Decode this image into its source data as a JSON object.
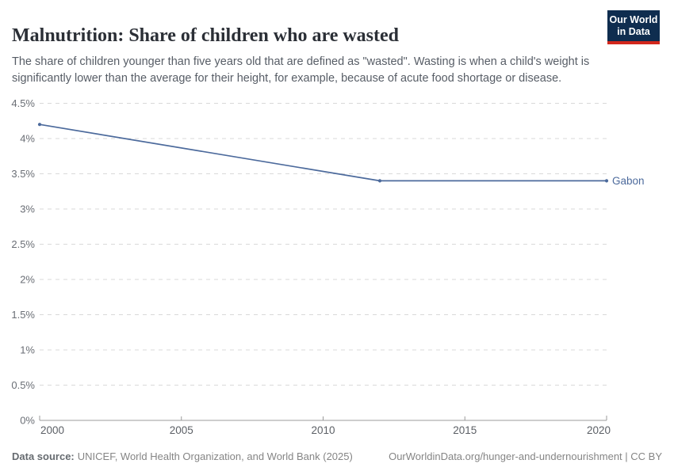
{
  "header": {
    "title": "Malnutrition: Share of children who are wasted",
    "subtitle": "The share of children younger than five years old that are defined as \"wasted\". Wasting is when a child's weight is significantly lower than the average for their height, for example, because of acute food shortage or disease.",
    "logo": {
      "line1": "Our World",
      "line2": "in Data",
      "bg_color": "#0f2d4f",
      "accent_color": "#d2271c"
    }
  },
  "chart_data": {
    "type": "line",
    "title": "Malnutrition: Share of children who are wasted",
    "xlabel": "",
    "ylabel": "",
    "xlim": [
      2000,
      2020
    ],
    "ylim": [
      0,
      4.5
    ],
    "xticks": [
      2000,
      2005,
      2010,
      2015,
      2020
    ],
    "yticks": [
      0,
      0.5,
      1,
      1.5,
      2,
      2.5,
      3,
      3.5,
      4,
      4.5
    ],
    "ytick_suffix": "%",
    "grid": "horizontal-dashed",
    "legend_position": "end-of-line-label",
    "series": [
      {
        "name": "Gabon",
        "color": "#4c6a9c",
        "points": [
          [
            2000,
            4.2
          ],
          [
            2012,
            3.4
          ],
          [
            2020,
            3.4
          ]
        ]
      }
    ],
    "style": {
      "gridline_color": "#d9d9d9",
      "axis_color": "#9b9b9b",
      "ytick_label_color": "#6a6e75",
      "xtick_label_color": "#5c6066"
    }
  },
  "footer": {
    "datasource_label": "Data source:",
    "datasource_value": "UNICEF, World Health Organization, and World Bank (2025)",
    "link": "OurWorldinData.org/hunger-and-undernourishment | CC BY"
  }
}
